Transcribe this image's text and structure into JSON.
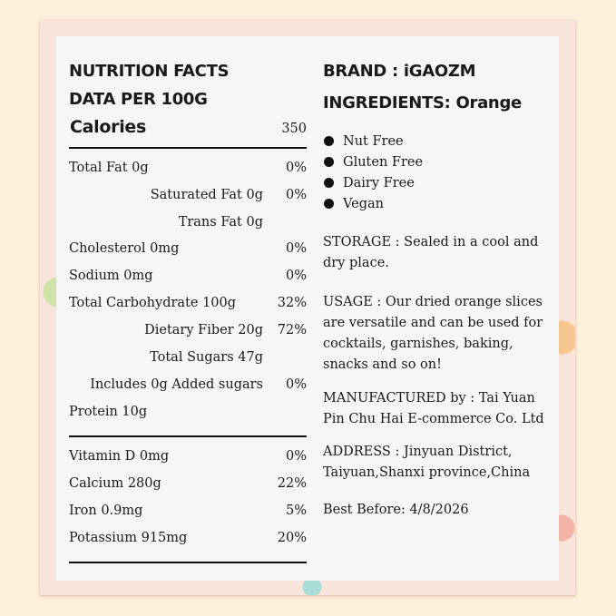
{
  "left": {
    "title": "NUTRITION FACTS",
    "subtitle": "DATA PER 100G",
    "calories_label": "Calories",
    "calories_value": "350",
    "rows": [
      {
        "label": "Total Fat 0g",
        "pct": "0%"
      },
      {
        "label": "Saturated Fat 0g",
        "pct": "0%"
      },
      {
        "label": "Trans Fat 0g",
        "pct": ""
      },
      {
        "label": "Cholesterol 0mg",
        "pct": "0%"
      },
      {
        "label": "Sodium 0mg",
        "pct": "0%"
      },
      {
        "label": "Total Carbohydrate 100g",
        "pct": "32%"
      },
      {
        "label": "Dietary Fiber 20g",
        "pct": "72%"
      },
      {
        "label": "Total Sugars 47g",
        "pct": ""
      },
      {
        "label": "Includes 0g Added sugars",
        "pct": "0%"
      },
      {
        "label": "Protein 10g",
        "pct": ""
      }
    ],
    "minerals": [
      {
        "label": "Vitamin D 0mg",
        "pct": "0%"
      },
      {
        "label": "Calcium 280g",
        "pct": "22%"
      },
      {
        "label": "Iron 0.9mg",
        "pct": "5%"
      },
      {
        "label": "Potassium 915mg",
        "pct": "20%"
      }
    ]
  },
  "right": {
    "brand": "BRAND : iGAOZM",
    "ingredients": "INGREDIENTS: Orange",
    "features": [
      "Nut Free",
      "Gluten Free",
      "Dairy Free",
      "Vegan"
    ],
    "storage": [
      "STORAGE : Sealed in a cool and",
      "dry place."
    ],
    "usage": [
      "USAGE : Our dried orange slices",
      "are versatile and can be used for",
      "cocktails, garnishes,  baking,",
      "snacks and so on!"
    ],
    "manufactured": [
      "MANUFACTURED by : Tai Yuan",
      "Pin Chu Hai E-commerce Co. Ltd"
    ],
    "address": [
      "ADDRESS : Jinyuan District,",
      "Taiyuan,Shanxi province,China"
    ],
    "best_before": "Best Before: 4/8/2026"
  }
}
